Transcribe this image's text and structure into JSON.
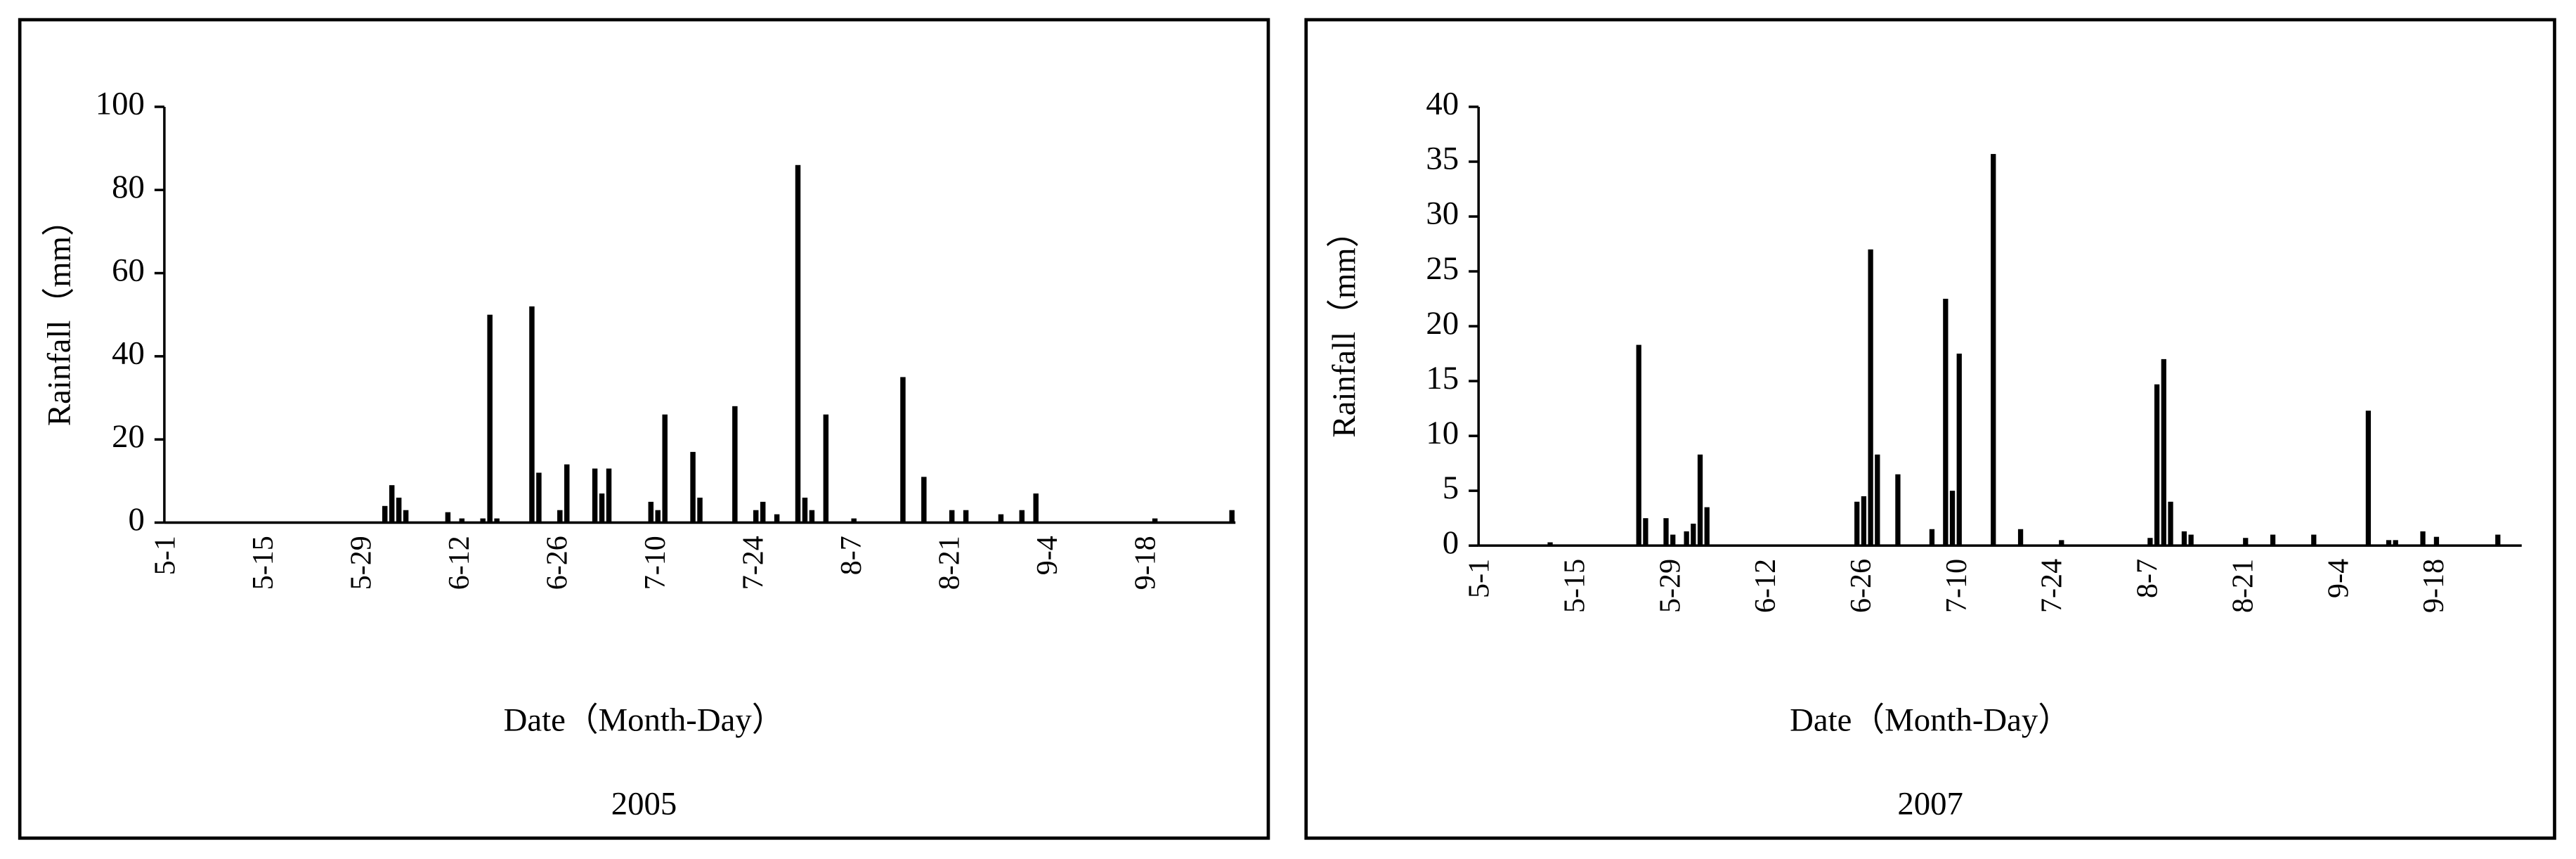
{
  "chart_data": [
    {
      "type": "bar",
      "title": "2005",
      "xlabel": "Date（Month-Day）",
      "ylabel": "Rainfall（mm）",
      "color": "#000000",
      "categories": [
        "5-1",
        null,
        null,
        null,
        null,
        null,
        null,
        null,
        null,
        null,
        null,
        null,
        null,
        null,
        "5-15",
        null,
        null,
        null,
        null,
        null,
        null,
        null,
        null,
        null,
        null,
        null,
        null,
        null,
        "5-29",
        null,
        null,
        null,
        null,
        null,
        null,
        null,
        null,
        null,
        null,
        null,
        null,
        null,
        "6-12",
        null,
        null,
        null,
        null,
        null,
        null,
        null,
        null,
        null,
        null,
        null,
        null,
        null,
        "6-26",
        null,
        null,
        null,
        null,
        null,
        null,
        null,
        null,
        null,
        null,
        null,
        null,
        null,
        "7-10",
        null,
        null,
        null,
        null,
        null,
        null,
        null,
        null,
        null,
        null,
        null,
        null,
        null,
        "7-24",
        null,
        null,
        null,
        null,
        null,
        null,
        null,
        null,
        null,
        null,
        null,
        null,
        null,
        "8-7",
        null,
        null,
        null,
        null,
        null,
        null,
        null,
        null,
        null,
        null,
        null,
        null,
        null,
        "8-21",
        null,
        null,
        null,
        null,
        null,
        null,
        null,
        null,
        null,
        null,
        null,
        null,
        null,
        "9-4",
        null,
        null,
        null,
        null,
        null,
        null,
        null,
        null,
        null,
        null,
        null,
        null,
        null,
        "9-18",
        null,
        null,
        null,
        null,
        null,
        null,
        null,
        null,
        null,
        null,
        null,
        null
      ],
      "values": [
        0,
        0,
        0,
        0,
        0,
        0,
        0,
        0,
        0,
        0,
        0,
        0,
        0,
        0,
        0,
        0,
        0,
        0,
        0,
        0,
        0,
        0,
        0,
        0,
        0,
        0,
        0,
        0,
        0,
        0,
        0,
        4,
        9,
        6,
        3,
        0,
        0,
        0,
        0,
        0,
        2.5,
        0,
        1,
        0,
        0,
        1,
        50,
        1,
        0,
        0,
        0,
        0,
        52,
        12,
        0,
        0,
        3,
        14,
        0,
        0,
        0,
        13,
        7,
        13,
        0,
        0,
        0,
        0,
        0,
        5,
        3,
        26,
        0,
        0,
        0,
        17,
        6,
        0,
        0,
        0,
        0,
        28,
        0,
        0,
        3,
        5,
        0,
        2,
        0,
        0,
        86,
        6,
        3,
        0,
        26,
        0,
        0,
        0,
        1,
        0,
        0,
        0,
        0,
        0,
        0,
        35,
        0,
        0,
        11,
        0,
        0,
        0,
        3,
        0,
        3,
        0,
        0,
        0,
        0,
        2,
        0,
        0,
        3,
        0,
        7,
        0,
        0,
        0,
        0,
        0,
        0,
        0,
        0,
        0,
        0,
        0,
        0,
        0,
        0,
        0,
        0,
        1,
        0,
        0,
        0,
        0,
        0,
        0,
        0,
        0,
        0,
        0,
        3
      ],
      "ylim": [
        0,
        100
      ],
      "yticks": [
        0,
        20,
        40,
        60,
        80,
        100
      ]
    },
    {
      "type": "bar",
      "title": "2007",
      "xlabel": "Date（Month-Day）",
      "ylabel": "Rainfall（mm）",
      "color": "#000000",
      "categories": [
        "5-1",
        null,
        null,
        null,
        null,
        null,
        null,
        null,
        null,
        null,
        null,
        null,
        null,
        null,
        "5-15",
        null,
        null,
        null,
        null,
        null,
        null,
        null,
        null,
        null,
        null,
        null,
        null,
        null,
        "5-29",
        null,
        null,
        null,
        null,
        null,
        null,
        null,
        null,
        null,
        null,
        null,
        null,
        null,
        "6-12",
        null,
        null,
        null,
        null,
        null,
        null,
        null,
        null,
        null,
        null,
        null,
        null,
        null,
        "6-26",
        null,
        null,
        null,
        null,
        null,
        null,
        null,
        null,
        null,
        null,
        null,
        null,
        null,
        "7-10",
        null,
        null,
        null,
        null,
        null,
        null,
        null,
        null,
        null,
        null,
        null,
        null,
        null,
        "7-24",
        null,
        null,
        null,
        null,
        null,
        null,
        null,
        null,
        null,
        null,
        null,
        null,
        null,
        "8-7",
        null,
        null,
        null,
        null,
        null,
        null,
        null,
        null,
        null,
        null,
        null,
        null,
        null,
        "8-21",
        null,
        null,
        null,
        null,
        null,
        null,
        null,
        null,
        null,
        null,
        null,
        null,
        null,
        "9-4",
        null,
        null,
        null,
        null,
        null,
        null,
        null,
        null,
        null,
        null,
        null,
        null,
        null,
        "9-18",
        null,
        null,
        null,
        null,
        null,
        null,
        null,
        null,
        null,
        null,
        null,
        null
      ],
      "values": [
        0,
        0,
        0,
        0,
        0,
        0,
        0,
        0,
        0,
        0,
        0.3,
        0,
        0,
        0,
        0,
        0,
        0,
        0,
        0,
        0,
        0,
        0,
        0,
        18.3,
        2.5,
        0,
        0,
        2.5,
        1,
        0,
        1.3,
        2,
        8.3,
        3.5,
        0,
        0,
        0,
        0,
        0,
        0,
        0,
        0,
        0,
        0,
        0,
        0,
        0,
        0,
        0,
        0,
        0,
        0,
        0,
        0,
        0,
        4,
        4.5,
        27,
        8.3,
        0,
        0,
        6.5,
        0,
        0,
        0,
        0,
        1.5,
        0,
        22.5,
        5,
        17.5,
        0,
        0,
        0,
        0,
        35.7,
        0,
        0,
        0,
        1.5,
        0,
        0,
        0,
        0,
        0,
        0.5,
        0,
        0,
        0,
        0,
        0,
        0,
        0,
        0,
        0,
        0,
        0,
        0,
        0.7,
        14.7,
        17,
        4,
        0,
        1.3,
        1,
        0,
        0,
        0,
        0,
        0,
        0,
        0,
        0.7,
        0,
        0,
        0,
        1,
        0,
        0,
        0,
        0,
        0,
        1,
        0,
        0,
        0,
        0,
        0,
        0,
        0,
        12.3,
        0,
        0,
        0.5,
        0.5,
        0,
        0,
        0,
        1.3,
        0,
        0.8,
        0,
        0,
        0,
        0,
        0,
        0,
        0,
        0,
        1,
        0,
        0,
        0
      ],
      "ylim": [
        0,
        40
      ],
      "yticks": [
        0,
        5,
        10,
        15,
        20,
        25,
        30,
        35,
        40
      ]
    }
  ]
}
